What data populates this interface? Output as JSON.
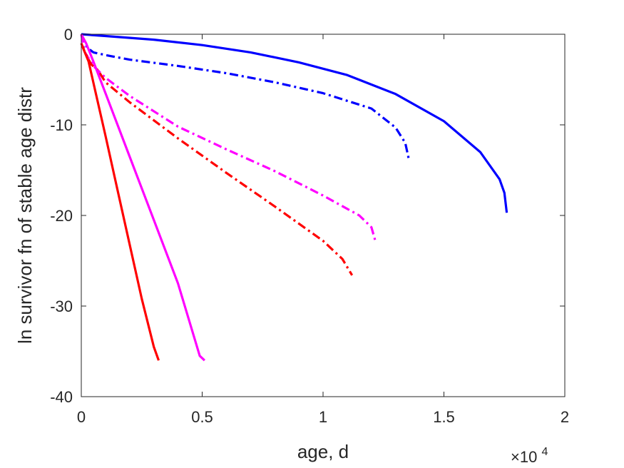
{
  "chart_data": {
    "type": "line",
    "xlabel": "age, d",
    "ylabel": "ln survivor fn of stable age distr",
    "x_multiplier": {
      "base": "×10",
      "exponent": "4"
    },
    "xlim": [
      0,
      20000
    ],
    "ylim": [
      -40,
      0
    ],
    "xticks": [
      0,
      5000,
      10000,
      15000,
      20000
    ],
    "xtick_labels": [
      "0",
      "0.5",
      "1",
      "1.5",
      "2"
    ],
    "yticks": [
      0,
      -10,
      -20,
      -30,
      -40
    ],
    "ytick_labels": [
      "0",
      "-10",
      "-20",
      "-30",
      "-40"
    ],
    "grid": false,
    "colors": {
      "blue": "#0000ff",
      "magenta": "#ff00ff",
      "red": "#ff0000",
      "axis": "#262626"
    },
    "series": [
      {
        "color": "#0000ff",
        "style": "solid",
        "x": [
          0,
          1000,
          3000,
          5000,
          7000,
          9000,
          11000,
          13000,
          15000,
          16500,
          17300,
          17500,
          17600
        ],
        "y": [
          0,
          -0.2,
          -0.6,
          -1.2,
          -2.0,
          -3.1,
          -4.5,
          -6.6,
          -9.6,
          -13.0,
          -16.0,
          -17.5,
          -19.7
        ]
      },
      {
        "color": "#0000ff",
        "style": "dashdot",
        "x": [
          0,
          250,
          500,
          1000,
          2000,
          4000,
          6000,
          8000,
          10000,
          12000,
          13000,
          13400,
          13550
        ],
        "y": [
          0,
          -1.5,
          -2.0,
          -2.3,
          -2.8,
          -3.5,
          -4.3,
          -5.3,
          -6.5,
          -8.2,
          -10.3,
          -12.0,
          -13.8
        ]
      },
      {
        "color": "#ff00ff",
        "style": "dashdot",
        "x": [
          0,
          150,
          500,
          1000,
          2000,
          4000,
          6000,
          8000,
          10000,
          11500,
          12000,
          12150
        ],
        "y": [
          0,
          -2.0,
          -3.5,
          -4.8,
          -6.8,
          -10.2,
          -12.7,
          -15.1,
          -17.8,
          -20.0,
          -21.3,
          -22.7
        ]
      },
      {
        "color": "#ff0000",
        "style": "dashdot",
        "x": [
          0,
          150,
          400,
          700,
          1000,
          2000,
          4000,
          6000,
          8000,
          10000,
          10800,
          11200
        ],
        "y": [
          -1.0,
          -2.0,
          -3.3,
          -4.0,
          -5.3,
          -7.5,
          -11.5,
          -15.3,
          -19.0,
          -22.8,
          -24.8,
          -26.6
        ]
      },
      {
        "color": "#ff00ff",
        "style": "solid",
        "x": [
          0,
          200,
          500,
          1000,
          2000,
          3000,
          4000,
          4900,
          5100
        ],
        "y": [
          0,
          -1.0,
          -3.0,
          -6.5,
          -13.5,
          -20.5,
          -27.5,
          -35.5,
          -36.0
        ]
      },
      {
        "color": "#ff0000",
        "style": "solid",
        "x": [
          0,
          100,
          300,
          600,
          1000,
          1500,
          2000,
          2500,
          3000,
          3200
        ],
        "y": [
          -1.0,
          -1.7,
          -3.0,
          -6.5,
          -11.2,
          -17.2,
          -23.2,
          -29.2,
          -34.5,
          -36.0
        ]
      }
    ]
  }
}
